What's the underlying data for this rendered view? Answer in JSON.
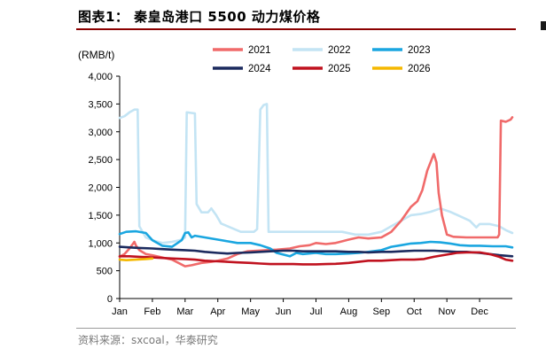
{
  "header": {
    "title": "图表1：  秦皇岛港口 5500 动力煤价格"
  },
  "footer": {
    "source": "资料来源：sxcoal，华泰研究"
  },
  "chart_data": {
    "type": "line",
    "title": "图表1：  秦皇岛港口 5500 动力煤价格",
    "ylabel": "(RMB/t)",
    "xlabel": "",
    "ylim": [
      0,
      4000
    ],
    "yticks": [
      0,
      500,
      1000,
      1500,
      2000,
      2500,
      3000,
      3500,
      4000
    ],
    "ytick_labels": [
      "0",
      "500",
      "1,000",
      "1,500",
      "2,000",
      "2,500",
      "3,000",
      "3,500",
      "4,000"
    ],
    "xlim": [
      1,
      13
    ],
    "xticks": [
      1,
      2,
      3,
      4,
      5,
      6,
      7,
      8,
      9,
      10,
      11,
      12
    ],
    "xtick_labels": [
      "Jan",
      "Feb",
      "Mar",
      "Apr",
      "May",
      "Jun",
      "Jul",
      "Aug",
      "Sep",
      "Oct",
      "Nov",
      "Dec"
    ],
    "grid": false,
    "legend_position": "top",
    "series": [
      {
        "name": "2021",
        "color": "#f06a6a",
        "points": [
          [
            1.0,
            750
          ],
          [
            1.15,
            800
          ],
          [
            1.3,
            900
          ],
          [
            1.4,
            980
          ],
          [
            1.45,
            1020
          ],
          [
            1.5,
            950
          ],
          [
            1.6,
            870
          ],
          [
            1.8,
            800
          ],
          [
            2.0,
            780
          ],
          [
            2.3,
            740
          ],
          [
            2.6,
            700
          ],
          [
            2.8,
            640
          ],
          [
            3.0,
            580
          ],
          [
            3.2,
            600
          ],
          [
            3.5,
            640
          ],
          [
            3.8,
            660
          ],
          [
            4.0,
            680
          ],
          [
            4.3,
            720
          ],
          [
            4.6,
            800
          ],
          [
            4.9,
            850
          ],
          [
            5.2,
            860
          ],
          [
            5.5,
            870
          ],
          [
            5.8,
            880
          ],
          [
            6.2,
            900
          ],
          [
            6.5,
            940
          ],
          [
            6.8,
            960
          ],
          [
            7.0,
            1000
          ],
          [
            7.3,
            980
          ],
          [
            7.6,
            1000
          ],
          [
            8.0,
            1060
          ],
          [
            8.3,
            1100
          ],
          [
            8.6,
            1080
          ],
          [
            9.0,
            1100
          ],
          [
            9.3,
            1200
          ],
          [
            9.6,
            1400
          ],
          [
            9.9,
            1650
          ],
          [
            10.1,
            1750
          ],
          [
            10.25,
            1950
          ],
          [
            10.4,
            2300
          ],
          [
            10.5,
            2450
          ],
          [
            10.6,
            2600
          ],
          [
            10.68,
            2450
          ],
          [
            10.75,
            1900
          ],
          [
            10.85,
            1500
          ],
          [
            11.0,
            1150
          ],
          [
            11.2,
            1110
          ],
          [
            11.6,
            1100
          ],
          [
            11.9,
            1100
          ],
          [
            12.3,
            1100
          ],
          [
            12.55,
            1100
          ],
          [
            12.6,
            1150
          ],
          [
            12.65,
            3200
          ],
          [
            12.8,
            3180
          ],
          [
            12.95,
            3220
          ],
          [
            13.0,
            3260
          ]
        ]
      },
      {
        "name": "2022",
        "color": "#c3e4f4",
        "points": [
          [
            1.0,
            3250
          ],
          [
            1.15,
            3280
          ],
          [
            1.3,
            3350
          ],
          [
            1.45,
            3400
          ],
          [
            1.55,
            3400
          ],
          [
            1.6,
            1300
          ],
          [
            1.8,
            1100
          ],
          [
            2.0,
            1050
          ],
          [
            2.3,
            1000
          ],
          [
            2.6,
            1020
          ],
          [
            2.9,
            1060
          ],
          [
            3.0,
            1100
          ],
          [
            3.05,
            3350
          ],
          [
            3.3,
            3330
          ],
          [
            3.35,
            1700
          ],
          [
            3.5,
            1550
          ],
          [
            3.7,
            1550
          ],
          [
            3.8,
            1620
          ],
          [
            3.95,
            1500
          ],
          [
            4.1,
            1350
          ],
          [
            4.3,
            1300
          ],
          [
            4.5,
            1250
          ],
          [
            4.7,
            1200
          ],
          [
            4.9,
            1200
          ],
          [
            5.1,
            1200
          ],
          [
            5.2,
            1250
          ],
          [
            5.3,
            3400
          ],
          [
            5.4,
            3480
          ],
          [
            5.5,
            3500
          ],
          [
            5.55,
            1200
          ],
          [
            5.8,
            1200
          ],
          [
            6.2,
            1200
          ],
          [
            6.6,
            1200
          ],
          [
            7.0,
            1200
          ],
          [
            7.4,
            1200
          ],
          [
            7.8,
            1200
          ],
          [
            8.2,
            1150
          ],
          [
            8.6,
            1150
          ],
          [
            9.0,
            1200
          ],
          [
            9.3,
            1300
          ],
          [
            9.6,
            1400
          ],
          [
            9.9,
            1500
          ],
          [
            10.2,
            1520
          ],
          [
            10.5,
            1560
          ],
          [
            10.8,
            1620
          ],
          [
            11.1,
            1560
          ],
          [
            11.4,
            1480
          ],
          [
            11.7,
            1400
          ],
          [
            11.9,
            1280
          ],
          [
            12.0,
            1340
          ],
          [
            12.3,
            1340
          ],
          [
            12.6,
            1300
          ],
          [
            12.8,
            1230
          ],
          [
            13.0,
            1180
          ]
        ]
      },
      {
        "name": "2023",
        "color": "#1aa6e0",
        "points": [
          [
            1.0,
            1160
          ],
          [
            1.2,
            1200
          ],
          [
            1.5,
            1210
          ],
          [
            1.8,
            1180
          ],
          [
            2.0,
            1050
          ],
          [
            2.3,
            950
          ],
          [
            2.6,
            930
          ],
          [
            2.9,
            1050
          ],
          [
            3.0,
            1180
          ],
          [
            3.1,
            1190
          ],
          [
            3.2,
            1100
          ],
          [
            3.3,
            1130
          ],
          [
            3.6,
            1100
          ],
          [
            4.0,
            1060
          ],
          [
            4.3,
            1030
          ],
          [
            4.6,
            1000
          ],
          [
            5.0,
            1000
          ],
          [
            5.3,
            960
          ],
          [
            5.6,
            900
          ],
          [
            5.8,
            820
          ],
          [
            6.0,
            790
          ],
          [
            6.2,
            760
          ],
          [
            6.4,
            820
          ],
          [
            6.6,
            800
          ],
          [
            7.0,
            820
          ],
          [
            7.3,
            800
          ],
          [
            7.6,
            800
          ],
          [
            8.0,
            810
          ],
          [
            8.3,
            820
          ],
          [
            8.6,
            840
          ],
          [
            9.0,
            870
          ],
          [
            9.3,
            930
          ],
          [
            9.6,
            960
          ],
          [
            9.9,
            990
          ],
          [
            10.2,
            1000
          ],
          [
            10.5,
            1020
          ],
          [
            10.8,
            1010
          ],
          [
            11.1,
            990
          ],
          [
            11.4,
            960
          ],
          [
            11.7,
            950
          ],
          [
            12.0,
            950
          ],
          [
            12.4,
            940
          ],
          [
            12.8,
            940
          ],
          [
            13.0,
            920
          ]
        ]
      },
      {
        "name": "2024",
        "color": "#1b2a5e",
        "points": [
          [
            1.0,
            930
          ],
          [
            1.3,
            920
          ],
          [
            1.6,
            910
          ],
          [
            2.0,
            900
          ],
          [
            2.3,
            890
          ],
          [
            2.6,
            880
          ],
          [
            3.0,
            870
          ],
          [
            3.3,
            860
          ],
          [
            3.6,
            840
          ],
          [
            4.0,
            820
          ],
          [
            4.3,
            810
          ],
          [
            4.6,
            820
          ],
          [
            5.0,
            830
          ],
          [
            5.3,
            840
          ],
          [
            5.6,
            850
          ],
          [
            6.0,
            860
          ],
          [
            6.3,
            860
          ],
          [
            6.6,
            850
          ],
          [
            7.0,
            850
          ],
          [
            7.3,
            850
          ],
          [
            7.6,
            850
          ],
          [
            8.0,
            840
          ],
          [
            8.3,
            840
          ],
          [
            8.6,
            830
          ],
          [
            9.0,
            840
          ],
          [
            9.3,
            840
          ],
          [
            9.6,
            850
          ],
          [
            10.0,
            860
          ],
          [
            10.3,
            860
          ],
          [
            10.6,
            860
          ],
          [
            11.0,
            850
          ],
          [
            11.3,
            840
          ],
          [
            11.6,
            840
          ],
          [
            12.0,
            820
          ],
          [
            12.3,
            800
          ],
          [
            12.6,
            780
          ],
          [
            13.0,
            760
          ]
        ]
      },
      {
        "name": "2025",
        "color": "#c0121f",
        "points": [
          [
            1.0,
            760
          ],
          [
            1.3,
            760
          ],
          [
            1.6,
            750
          ],
          [
            2.0,
            740
          ],
          [
            2.3,
            730
          ],
          [
            2.6,
            720
          ],
          [
            3.0,
            710
          ],
          [
            3.3,
            700
          ],
          [
            3.6,
            680
          ],
          [
            4.0,
            670
          ],
          [
            4.3,
            660
          ],
          [
            4.6,
            650
          ],
          [
            5.0,
            640
          ],
          [
            5.3,
            630
          ],
          [
            5.6,
            620
          ],
          [
            6.0,
            620
          ],
          [
            6.3,
            620
          ],
          [
            6.6,
            615
          ],
          [
            7.0,
            615
          ],
          [
            7.3,
            620
          ],
          [
            7.6,
            625
          ],
          [
            8.0,
            640
          ],
          [
            8.3,
            660
          ],
          [
            8.6,
            680
          ],
          [
            9.0,
            680
          ],
          [
            9.3,
            690
          ],
          [
            9.6,
            700
          ],
          [
            10.0,
            700
          ],
          [
            10.3,
            710
          ],
          [
            10.6,
            750
          ],
          [
            11.0,
            790
          ],
          [
            11.3,
            820
          ],
          [
            11.6,
            830
          ],
          [
            12.0,
            830
          ],
          [
            12.3,
            800
          ],
          [
            12.6,
            750
          ],
          [
            12.8,
            700
          ],
          [
            13.0,
            680
          ]
        ]
      },
      {
        "name": "2026",
        "color": "#f5b800",
        "points": [
          [
            1.0,
            700
          ],
          [
            1.2,
            690
          ],
          [
            1.5,
            700
          ],
          [
            1.8,
            710
          ],
          [
            2.0,
            720
          ]
        ]
      }
    ]
  }
}
